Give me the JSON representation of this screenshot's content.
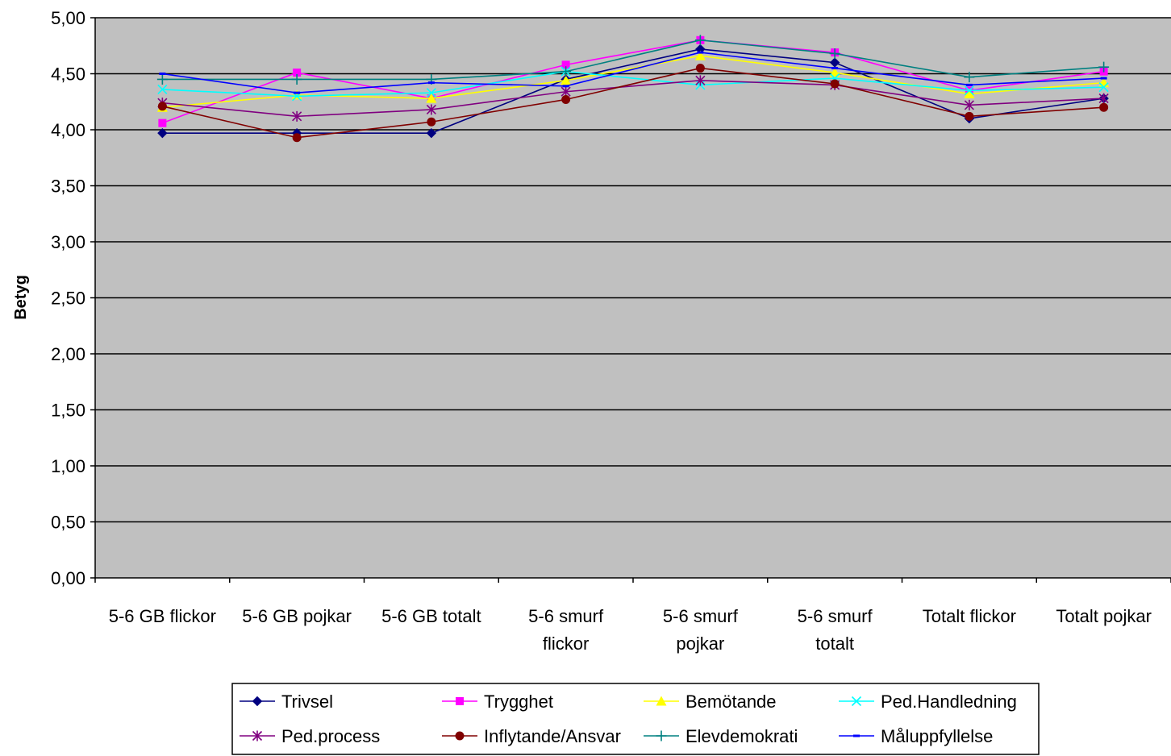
{
  "chart_data": {
    "type": "line",
    "title": "",
    "xlabel": "",
    "ylabel": "Betyg",
    "ylim": [
      0,
      5
    ],
    "ytick_labels": [
      "0,00",
      "0,50",
      "1,00",
      "1,50",
      "2,00",
      "2,50",
      "3,00",
      "3,50",
      "4,00",
      "4,50",
      "5,00"
    ],
    "grid": true,
    "legend_position": "bottom",
    "categories": [
      [
        "5-6 GB flickor"
      ],
      [
        "5-6 GB pojkar"
      ],
      [
        "5-6 GB totalt"
      ],
      [
        "5-6 smurf",
        "flickor"
      ],
      [
        "5-6 smurf",
        "pojkar"
      ],
      [
        "5-6 smurf",
        "totalt"
      ],
      [
        "Totalt flickor"
      ],
      [
        "Totalt pojkar"
      ]
    ],
    "series": [
      {
        "name": "Trivsel",
        "color": "#000080",
        "marker": "diamond",
        "values": [
          3.97,
          3.97,
          3.97,
          4.45,
          4.72,
          4.6,
          4.1,
          4.28
        ]
      },
      {
        "name": "Trygghet",
        "color": "#FF00FF",
        "marker": "square",
        "values": [
          4.06,
          4.51,
          4.28,
          4.58,
          4.8,
          4.69,
          4.35,
          4.52
        ]
      },
      {
        "name": "Bemötande",
        "color": "#FFFF00",
        "marker": "triangle",
        "values": [
          4.2,
          4.31,
          4.28,
          4.44,
          4.66,
          4.51,
          4.32,
          4.42
        ]
      },
      {
        "name": "Ped.Handledning",
        "color": "#00FFFF",
        "marker": "x",
        "values": [
          4.36,
          4.3,
          4.33,
          4.52,
          4.4,
          4.46,
          4.35,
          4.38
        ]
      },
      {
        "name": "Ped.process",
        "color": "#800080",
        "marker": "star",
        "values": [
          4.24,
          4.12,
          4.18,
          4.34,
          4.44,
          4.4,
          4.22,
          4.28
        ]
      },
      {
        "name": "Inflytande/Ansvar",
        "color": "#800000",
        "marker": "circle",
        "values": [
          4.21,
          3.93,
          4.07,
          4.27,
          4.55,
          4.41,
          4.12,
          4.2
        ]
      },
      {
        "name": "Elevdemokrati",
        "color": "#008080",
        "marker": "plus",
        "values": [
          4.45,
          4.45,
          4.45,
          4.52,
          4.8,
          4.68,
          4.47,
          4.56
        ]
      },
      {
        "name": "Måluppfyllelse",
        "color": "#0000FF",
        "marker": "dash",
        "values": [
          4.5,
          4.33,
          4.42,
          4.39,
          4.69,
          4.55,
          4.4,
          4.46
        ]
      }
    ]
  }
}
